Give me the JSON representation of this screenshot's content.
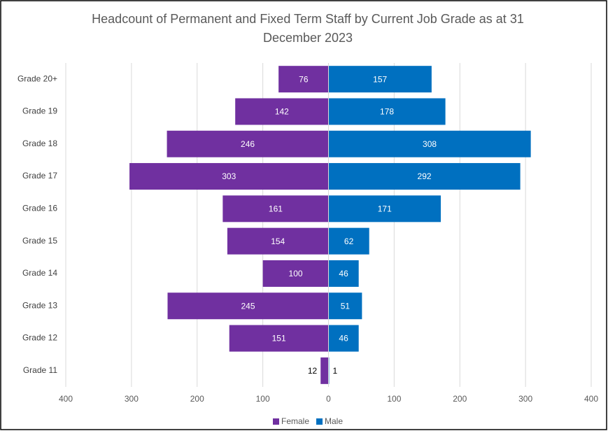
{
  "chart_data": {
    "type": "butterfly-bar",
    "title": "Headcount of Permanent and Fixed Term Staff by Current Job Grade as at 31 December 2023",
    "categories": [
      "Grade 20+",
      "Grade 19",
      "Grade 18",
      "Grade 17",
      "Grade 16",
      "Grade 15",
      "Grade 14",
      "Grade 13",
      "Grade 12",
      "Grade 11"
    ],
    "series": [
      {
        "name": "Female",
        "color": "#7030a0",
        "side": "left",
        "values": [
          76,
          142,
          246,
          303,
          161,
          154,
          100,
          245,
          151,
          12
        ]
      },
      {
        "name": "Male",
        "color": "#0070c0",
        "side": "right",
        "values": [
          157,
          178,
          308,
          292,
          171,
          62,
          46,
          51,
          46,
          1
        ]
      }
    ],
    "xlim": [
      -400,
      400
    ],
    "xticks": [
      {
        "value": -400,
        "label": "400"
      },
      {
        "value": -300,
        "label": "300"
      },
      {
        "value": -200,
        "label": "200"
      },
      {
        "value": -100,
        "label": "100"
      },
      0,
      100,
      200,
      300,
      400
    ],
    "grid": true,
    "legend": "bottom"
  }
}
